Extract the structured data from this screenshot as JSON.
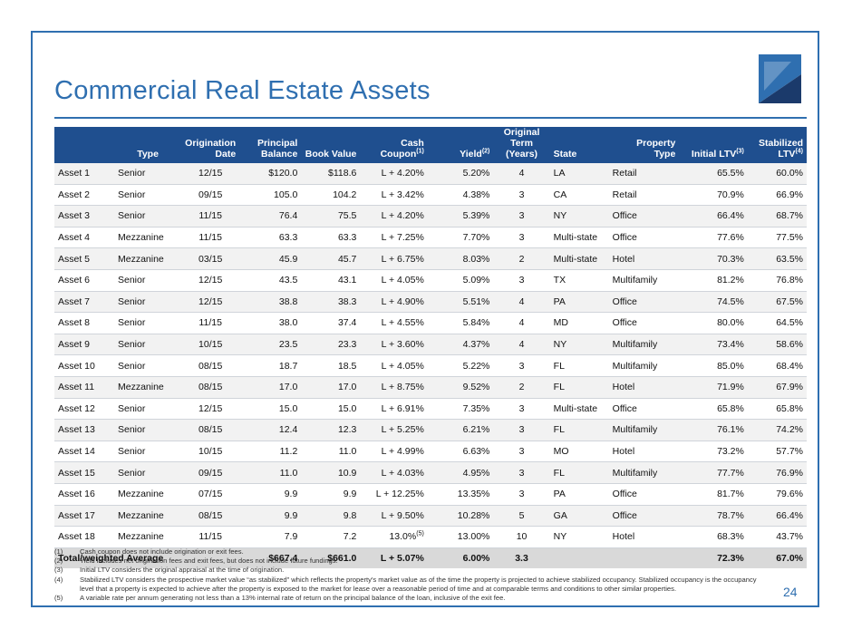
{
  "title": "Commercial Real Estate Assets",
  "page_number": "24",
  "brand_colors": {
    "primary": "#2f6fb0",
    "header_fill": "#1f4f8f",
    "navy": "#1b3a6b"
  },
  "logo_icon": "company-logo-icon",
  "table": {
    "headers": [
      {
        "line1": "",
        "line2": "Type",
        "sup": ""
      },
      {
        "line1": "Origination",
        "line2": "Date",
        "sup": ""
      },
      {
        "line1": "Principal",
        "line2": "Balance",
        "sup": ""
      },
      {
        "line1": "",
        "line2": "Book Value",
        "sup": ""
      },
      {
        "line1": "Cash",
        "line2": "Coupon",
        "sup": "(1)"
      },
      {
        "line1": "",
        "line2": "Yield",
        "sup": "(2)"
      },
      {
        "line1": "Original Term",
        "line2": "(Years)",
        "sup": ""
      },
      {
        "line1": "",
        "line2": "State",
        "sup": ""
      },
      {
        "line1": "Property",
        "line2": "Type",
        "sup": ""
      },
      {
        "line1": "",
        "line2": "Initial LTV",
        "sup": "(3)"
      },
      {
        "line1": "Stabilized",
        "line2": "LTV",
        "sup": "(4)"
      }
    ],
    "rows": [
      {
        "name": "Asset 1",
        "type": "Senior",
        "date": "12/15",
        "principal": "$120.0",
        "book": "$118.6",
        "coupon": "L + 4.20%",
        "coupon_sup": "",
        "yield": "5.20%",
        "term": "4",
        "state": "LA",
        "ptype": "Retail",
        "iltv": "65.5%",
        "sltv": "60.0%"
      },
      {
        "name": "Asset 2",
        "type": "Senior",
        "date": "09/15",
        "principal": "105.0",
        "book": "104.2",
        "coupon": "L + 3.42%",
        "coupon_sup": "",
        "yield": "4.38%",
        "term": "3",
        "state": "CA",
        "ptype": "Retail",
        "iltv": "70.9%",
        "sltv": "66.9%"
      },
      {
        "name": "Asset 3",
        "type": "Senior",
        "date": "11/15",
        "principal": "76.4",
        "book": "75.5",
        "coupon": "L + 4.20%",
        "coupon_sup": "",
        "yield": "5.39%",
        "term": "3",
        "state": "NY",
        "ptype": "Office",
        "iltv": "66.4%",
        "sltv": "68.7%"
      },
      {
        "name": "Asset 4",
        "type": "Mezzanine",
        "date": "11/15",
        "principal": "63.3",
        "book": "63.3",
        "coupon": "L + 7.25%",
        "coupon_sup": "",
        "yield": "7.70%",
        "term": "3",
        "state": "Multi-state",
        "ptype": "Office",
        "iltv": "77.6%",
        "sltv": "77.5%"
      },
      {
        "name": "Asset 5",
        "type": "Mezzanine",
        "date": "03/15",
        "principal": "45.9",
        "book": "45.7",
        "coupon": "L + 6.75%",
        "coupon_sup": "",
        "yield": "8.03%",
        "term": "2",
        "state": "Multi-state",
        "ptype": "Hotel",
        "iltv": "70.3%",
        "sltv": "63.5%"
      },
      {
        "name": "Asset 6",
        "type": "Senior",
        "date": "12/15",
        "principal": "43.5",
        "book": "43.1",
        "coupon": "L + 4.05%",
        "coupon_sup": "",
        "yield": "5.09%",
        "term": "3",
        "state": "TX",
        "ptype": "Multifamily",
        "iltv": "81.2%",
        "sltv": "76.8%"
      },
      {
        "name": "Asset 7",
        "type": "Senior",
        "date": "12/15",
        "principal": "38.8",
        "book": "38.3",
        "coupon": "L + 4.90%",
        "coupon_sup": "",
        "yield": "5.51%",
        "term": "4",
        "state": "PA",
        "ptype": "Office",
        "iltv": "74.5%",
        "sltv": "67.5%"
      },
      {
        "name": "Asset 8",
        "type": "Senior",
        "date": "11/15",
        "principal": "38.0",
        "book": "37.4",
        "coupon": "L + 4.55%",
        "coupon_sup": "",
        "yield": "5.84%",
        "term": "4",
        "state": "MD",
        "ptype": "Office",
        "iltv": "80.0%",
        "sltv": "64.5%"
      },
      {
        "name": "Asset 9",
        "type": "Senior",
        "date": "10/15",
        "principal": "23.5",
        "book": "23.3",
        "coupon": "L + 3.60%",
        "coupon_sup": "",
        "yield": "4.37%",
        "term": "4",
        "state": "NY",
        "ptype": "Multifamily",
        "iltv": "73.4%",
        "sltv": "58.6%"
      },
      {
        "name": "Asset 10",
        "type": "Senior",
        "date": "08/15",
        "principal": "18.7",
        "book": "18.5",
        "coupon": "L + 4.05%",
        "coupon_sup": "",
        "yield": "5.22%",
        "term": "3",
        "state": "FL",
        "ptype": "Multifamily",
        "iltv": "85.0%",
        "sltv": "68.4%"
      },
      {
        "name": "Asset 11",
        "type": "Mezzanine",
        "date": "08/15",
        "principal": "17.0",
        "book": "17.0",
        "coupon": "L + 8.75%",
        "coupon_sup": "",
        "yield": "9.52%",
        "term": "2",
        "state": "FL",
        "ptype": "Hotel",
        "iltv": "71.9%",
        "sltv": "67.9%"
      },
      {
        "name": "Asset 12",
        "type": "Senior",
        "date": "12/15",
        "principal": "15.0",
        "book": "15.0",
        "coupon": "L + 6.91%",
        "coupon_sup": "",
        "yield": "7.35%",
        "term": "3",
        "state": "Multi-state",
        "ptype": "Office",
        "iltv": "65.8%",
        "sltv": "65.8%"
      },
      {
        "name": "Asset 13",
        "type": "Senior",
        "date": "08/15",
        "principal": "12.4",
        "book": "12.3",
        "coupon": "L + 5.25%",
        "coupon_sup": "",
        "yield": "6.21%",
        "term": "3",
        "state": "FL",
        "ptype": "Multifamily",
        "iltv": "76.1%",
        "sltv": "74.2%"
      },
      {
        "name": "Asset 14",
        "type": "Senior",
        "date": "10/15",
        "principal": "11.2",
        "book": "11.0",
        "coupon": "L + 4.99%",
        "coupon_sup": "",
        "yield": "6.63%",
        "term": "3",
        "state": "MO",
        "ptype": "Hotel",
        "iltv": "73.2%",
        "sltv": "57.7%"
      },
      {
        "name": "Asset 15",
        "type": "Senior",
        "date": "09/15",
        "principal": "11.0",
        "book": "10.9",
        "coupon": "L + 4.03%",
        "coupon_sup": "",
        "yield": "4.95%",
        "term": "3",
        "state": "FL",
        "ptype": "Multifamily",
        "iltv": "77.7%",
        "sltv": "76.9%"
      },
      {
        "name": "Asset 16",
        "type": "Mezzanine",
        "date": "07/15",
        "principal": "9.9",
        "book": "9.9",
        "coupon": "L + 12.25%",
        "coupon_sup": "",
        "yield": "13.35%",
        "term": "3",
        "state": "PA",
        "ptype": "Office",
        "iltv": "81.7%",
        "sltv": "79.6%"
      },
      {
        "name": "Asset 17",
        "type": "Mezzanine",
        "date": "08/15",
        "principal": "9.9",
        "book": "9.8",
        "coupon": "L + 9.50%",
        "coupon_sup": "",
        "yield": "10.28%",
        "term": "5",
        "state": "GA",
        "ptype": "Office",
        "iltv": "78.7%",
        "sltv": "66.4%"
      },
      {
        "name": "Asset 18",
        "type": "Mezzanine",
        "date": "11/15",
        "principal": "7.9",
        "book": "7.2",
        "coupon": "13.0%",
        "coupon_sup": "(5)",
        "yield": "13.00%",
        "term": "10",
        "state": "NY",
        "ptype": "Hotel",
        "iltv": "68.3%",
        "sltv": "43.7%"
      }
    ],
    "total": {
      "label": "Total/weighted Average",
      "principal": "$667.4",
      "book": "$661.0",
      "coupon": "L + 5.07%",
      "yield": "6.00%",
      "term": "3.3",
      "iltv": "72.3%",
      "sltv": "67.0%"
    }
  },
  "footnotes": [
    {
      "num": "(1)",
      "text": "Cash coupon does not include origination or exit fees."
    },
    {
      "num": "(2)",
      "text": "Yield includes net origination fees and exit fees, but does not include future fundings."
    },
    {
      "num": "(3)",
      "text": "Initial LTV considers the original appraisal at the time of origination."
    },
    {
      "num": "(4)",
      "text": "Stabilized LTV considers the prospective market value “as stabilized” which reflects the property's market value as of the time the property is projected to achieve stabilized occupancy. Stabilized occupancy is the occupancy level that a property is expected to achieve after the property is exposed to the market for lease over a reasonable period of time and at comparable terms and conditions to other similar properties."
    },
    {
      "num": "(5)",
      "text": "A variable rate per annum generating not less than a 13% internal rate of return on the principal balance of the loan, inclusive of the exit fee."
    }
  ]
}
